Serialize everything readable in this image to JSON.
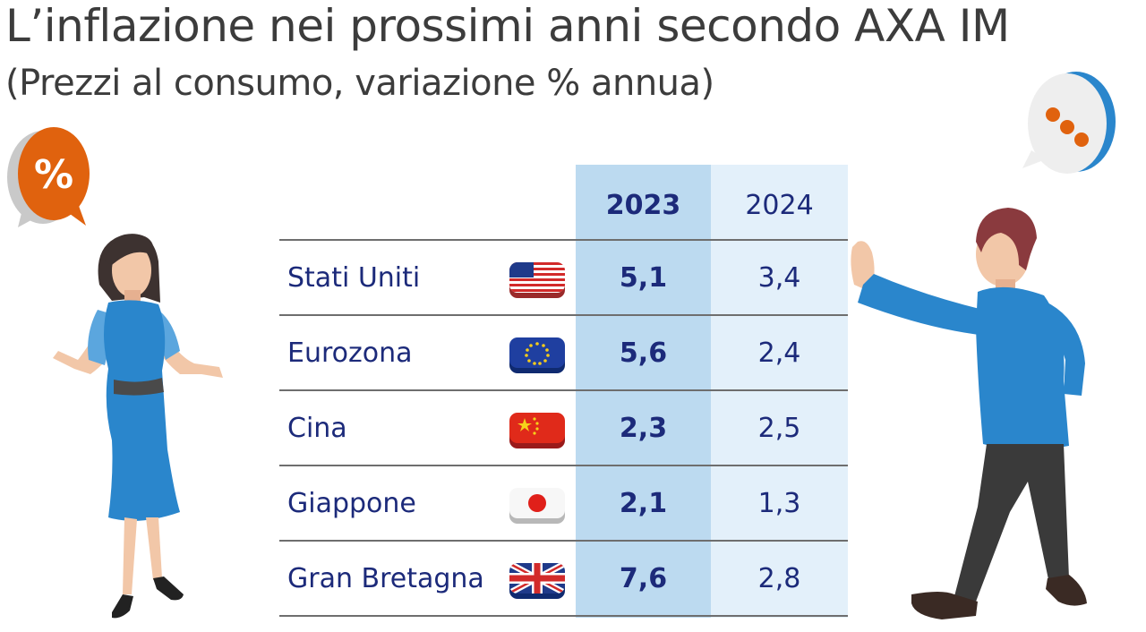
{
  "title": "L’inflazione nei prossimi anni secondo AXA IM",
  "subtitle": "(Prezzi al consumo, variazione % annua)",
  "percent_bubble_text": "%",
  "chart_data": {
    "type": "table",
    "title": "L’inflazione nei prossimi anni secondo AXA IM",
    "subtitle": "(Prezzi al consumo, variazione % annua)",
    "columns": [
      "2023",
      "2024"
    ],
    "rows": [
      {
        "country": "Stati Uniti",
        "flag": "usa-flag-icon",
        "v2023": "5,1",
        "v2024": "3,4"
      },
      {
        "country": "Eurozona",
        "flag": "eu-flag-icon",
        "v2023": "5,6",
        "v2024": "2,4"
      },
      {
        "country": "Cina",
        "flag": "china-flag-icon",
        "v2023": "2,3",
        "v2024": "2,5"
      },
      {
        "country": "Giappone",
        "flag": "japan-flag-icon",
        "v2023": "2,1",
        "v2024": "1,3"
      },
      {
        "country": "Gran Bretagna",
        "flag": "uk-flag-icon",
        "v2023": "7,6",
        "v2024": "2,8"
      }
    ]
  },
  "colors": {
    "accent_2023": "#bcdaf0",
    "accent_2024": "#e3f0fa",
    "text_navy": "#1c2a7a",
    "orange": "#e0620e",
    "blue": "#2a86cc"
  }
}
